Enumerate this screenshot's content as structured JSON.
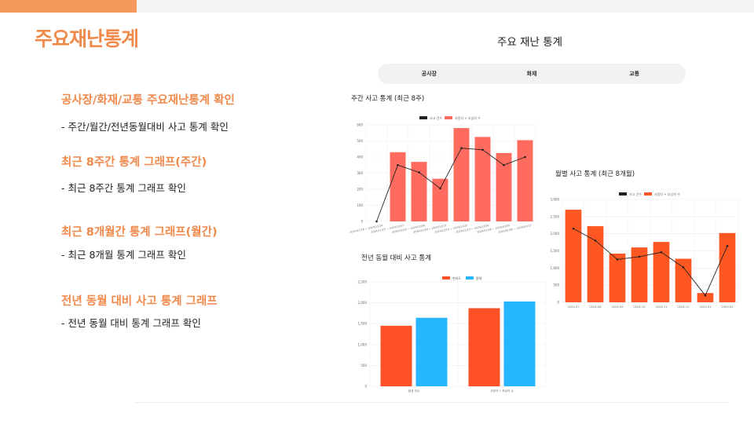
{
  "slide": {
    "title": "주요재난통계",
    "sections": [
      {
        "heading": "공사장/화재/교통 주요재난통계 확인",
        "desc": "- 주간/월간/전년동월대비 사고 통계 확인"
      },
      {
        "heading": "최근 8주간 통계 그래프(주간)",
        "desc": "- 최근 8주간 통계 그래프 확인"
      },
      {
        "heading": "최근 8개월간 통계 그래프(월간)",
        "desc": "- 최근 8개월 통계 그래프 확인"
      },
      {
        "heading": "전년 동월 대비 사고 통계 그래프",
        "desc": "- 전년 동월 대비 통계 그래프 확인"
      }
    ]
  },
  "panel": {
    "title": "주요 재난 통계",
    "tabs": [
      "공사장",
      "화재",
      "교통"
    ]
  },
  "colors": {
    "accent": "#f0894a",
    "weekly_bar": "#ff6b5e",
    "monthly_bar": "#ff5722",
    "yoy_current": "#ff5027",
    "yoy_prev": "#26b6ff",
    "line": "#222222"
  },
  "chart_data": [
    {
      "type": "bar",
      "title": "주간 사고 통계 (최근 8주)",
      "legend": [
        "사고 건수",
        "사망자 + 부상자 수"
      ],
      "categories": [
        "2024/11/18 ~ 2024/11/24",
        "2024/11/25 ~ 2024/12/01",
        "2024/12/02 ~ 2024/12/08",
        "2024/12/09 ~ 2024/12/15",
        "2024/12/16 ~ 2024/12/22",
        "2024/12/23 ~ 2024/12/29",
        "2024/12/30 ~ 2025/01/05",
        "2025/01/06 ~ 2025/01/12"
      ],
      "series": [
        {
          "name": "사고 건수",
          "type": "line",
          "values": [
            0,
            350,
            305,
            205,
            455,
            445,
            350,
            400
          ]
        },
        {
          "name": "사망자 + 부상자 수",
          "type": "bar",
          "values": [
            null,
            430,
            370,
            265,
            580,
            525,
            425,
            505
          ]
        }
      ],
      "ylim": [
        0,
        600
      ],
      "yticks": [
        "0",
        "100",
        "200",
        "300",
        "400",
        "500",
        "600"
      ]
    },
    {
      "type": "bar",
      "title": "월별 사고 통계 (최근 8개월)",
      "legend": [
        "사고 건수",
        "사망자 + 부상자 수"
      ],
      "categories": [
        "2024-07",
        "2024-08",
        "2024-09",
        "2024-10",
        "2024-11",
        "2024-12",
        "2025-01",
        "2025-02"
      ],
      "series": [
        {
          "name": "사고 건수",
          "type": "line",
          "values": [
            2150,
            1800,
            1250,
            1330,
            1460,
            1020,
            200,
            1640
          ]
        },
        {
          "name": "사망자 + 부상자 수",
          "type": "bar",
          "values": [
            2700,
            2220,
            1420,
            1600,
            1760,
            1270,
            270,
            2020
          ]
        }
      ],
      "ylim": [
        0,
        3000
      ],
      "yticks": [
        "0",
        "500",
        "1,000",
        "1,500",
        "2,000",
        "2,500",
        "3,000"
      ]
    },
    {
      "type": "bar",
      "title": "전년 동월 대비 사고 통계",
      "legend": [
        "현재도",
        "올해"
      ],
      "categories": [
        "발생 건수",
        "사망자 + 부상자 수"
      ],
      "series": [
        {
          "name": "현재도",
          "values": [
            1450,
            1870
          ]
        },
        {
          "name": "올해",
          "values": [
            1640,
            2030
          ]
        }
      ],
      "ylim": [
        0,
        2500
      ],
      "yticks": [
        "0",
        "500",
        "1,000",
        "1,500",
        "2,000",
        "2,500"
      ]
    }
  ]
}
